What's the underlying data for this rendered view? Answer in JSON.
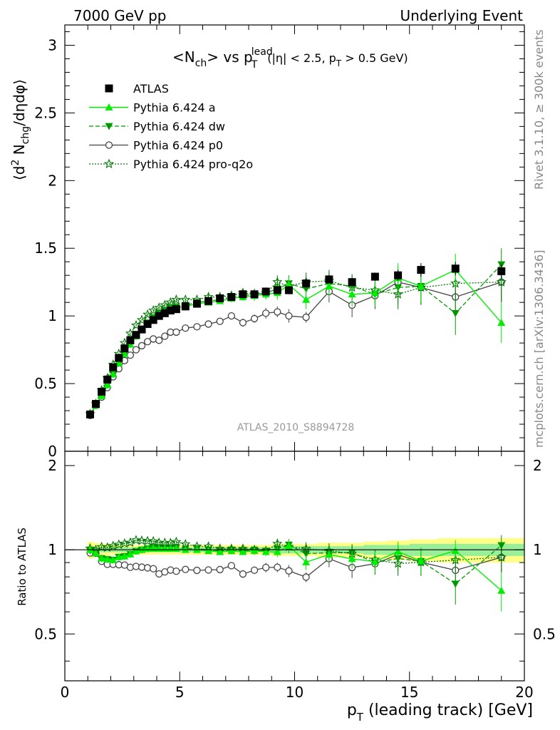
{
  "header": {
    "left": "7000 GeV pp",
    "right": "Underlying Event"
  },
  "plot_title": {
    "main": "<N",
    "main_sub": "ch",
    "vs": "> vs p",
    "vs_sup": "lead",
    "vs_sub": "T",
    "cut_open": "(|η| < 2.5, p",
    "cut_sub": "T",
    "cut_close": " > 0.5 GeV)"
  },
  "side_labels": {
    "rivet": "Rivet 3.1.10, ≥ 300k events",
    "mcplots": "mcplots.cern.ch [arXiv:1306.3436]"
  },
  "watermark": "ATLAS_2010_S8894728",
  "y_label_top": {
    "open": "⟨d",
    "sup": "2",
    "mid": " N",
    "sub": "chg",
    "close": "/dηdφ⟩"
  },
  "y_label_bottom": "Ratio to ATLAS",
  "x_label": {
    "p": "p",
    "sub": "T",
    "rest": "  (leading track) [GeV]"
  },
  "legend": [
    {
      "label": "ATLAS"
    },
    {
      "label": "Pythia 6.424 a"
    },
    {
      "label": "Pythia 6.424 dw"
    },
    {
      "label": "Pythia 6.424 p0"
    },
    {
      "label": "Pythia 6.424 pro-q2o"
    }
  ],
  "colors": {
    "data": "#000000",
    "a": "#00ee00",
    "dw": "#009900",
    "p0": "#444444",
    "pro": "#007700",
    "band_data": "#ffff88",
    "band_mc": "#99ee99"
  },
  "chart_data": {
    "type": "scatter",
    "x": [
      1.1,
      1.35,
      1.6,
      1.85,
      2.1,
      2.35,
      2.6,
      2.85,
      3.1,
      3.35,
      3.6,
      3.85,
      4.1,
      4.35,
      4.6,
      4.85,
      5.25,
      5.75,
      6.25,
      6.75,
      7.25,
      7.75,
      8.25,
      8.75,
      9.25,
      9.75,
      10.5,
      11.5,
      12.5,
      13.5,
      14.5,
      15.5,
      17.0,
      19.0
    ],
    "xlim": [
      0,
      20
    ],
    "xticks": [
      0,
      5,
      10,
      15,
      20
    ],
    "ylim_top": [
      0,
      3.15
    ],
    "yticks_top": [
      0,
      0.5,
      1,
      1.5,
      2,
      2.5,
      3
    ],
    "ylim_ratio": [
      0.34,
      2.25
    ],
    "yticks_ratio": [
      0.5,
      1,
      2
    ],
    "series": [
      {
        "name": "ATLAS",
        "key": "data",
        "values": [
          0.272,
          0.35,
          0.44,
          0.53,
          0.62,
          0.69,
          0.76,
          0.82,
          0.86,
          0.9,
          0.94,
          0.97,
          1.0,
          1.02,
          1.04,
          1.05,
          1.07,
          1.09,
          1.11,
          1.13,
          1.14,
          1.16,
          1.16,
          1.18,
          1.19,
          1.19,
          1.24,
          1.27,
          1.25,
          1.29,
          1.3,
          1.34,
          1.35,
          1.33
        ],
        "errors": [
          0.005,
          0.005,
          0.005,
          0.005,
          0.005,
          0.005,
          0.005,
          0.005,
          0.005,
          0.005,
          0.005,
          0.005,
          0.005,
          0.005,
          0.005,
          0.005,
          0.01,
          0.01,
          0.01,
          0.01,
          0.01,
          0.01,
          0.01,
          0.01,
          0.02,
          0.02,
          0.03,
          0.03,
          0.03,
          0.03,
          0.04,
          0.05,
          0.05,
          0.05
        ]
      },
      {
        "name": "Pythia 6.424 a",
        "key": "a",
        "values": [
          0.272,
          0.34,
          0.41,
          0.49,
          0.57,
          0.65,
          0.72,
          0.79,
          0.85,
          0.9,
          0.95,
          0.98,
          1.01,
          1.03,
          1.05,
          1.06,
          1.07,
          1.09,
          1.1,
          1.11,
          1.13,
          1.14,
          1.15,
          1.16,
          1.17,
          1.23,
          1.12,
          1.22,
          1.16,
          1.17,
          1.28,
          1.22,
          1.34,
          0.95
        ],
        "errors": [
          0.005,
          0.005,
          0.005,
          0.005,
          0.005,
          0.005,
          0.005,
          0.005,
          0.005,
          0.005,
          0.01,
          0.01,
          0.01,
          0.01,
          0.01,
          0.01,
          0.01,
          0.01,
          0.02,
          0.02,
          0.03,
          0.03,
          0.04,
          0.04,
          0.05,
          0.06,
          0.07,
          0.08,
          0.09,
          0.1,
          0.11,
          0.12,
          0.12,
          0.15
        ]
      },
      {
        "name": "Pythia 6.424 dw",
        "key": "dw",
        "values": [
          0.27,
          0.34,
          0.41,
          0.49,
          0.57,
          0.65,
          0.72,
          0.79,
          0.85,
          0.9,
          0.95,
          0.99,
          1.02,
          1.04,
          1.06,
          1.07,
          1.08,
          1.1,
          1.11,
          1.12,
          1.14,
          1.15,
          1.16,
          1.17,
          1.2,
          1.24,
          1.2,
          1.24,
          1.22,
          1.16,
          1.21,
          1.22,
          1.02,
          1.38
        ],
        "errors": [
          0.005,
          0.005,
          0.005,
          0.005,
          0.005,
          0.005,
          0.005,
          0.005,
          0.005,
          0.005,
          0.01,
          0.01,
          0.01,
          0.01,
          0.01,
          0.01,
          0.01,
          0.01,
          0.02,
          0.02,
          0.03,
          0.03,
          0.04,
          0.04,
          0.05,
          0.06,
          0.07,
          0.08,
          0.09,
          0.1,
          0.12,
          0.14,
          0.16,
          0.12
        ]
      },
      {
        "name": "Pythia 6.424 p0",
        "key": "p0",
        "values": [
          0.265,
          0.34,
          0.4,
          0.47,
          0.55,
          0.61,
          0.67,
          0.71,
          0.75,
          0.78,
          0.81,
          0.83,
          0.82,
          0.85,
          0.88,
          0.88,
          0.91,
          0.92,
          0.94,
          0.96,
          1.0,
          0.95,
          0.98,
          1.02,
          1.03,
          1.0,
          0.99,
          1.18,
          1.08,
          1.15,
          1.25,
          1.21,
          1.14,
          1.25
        ],
        "errors": [
          0.005,
          0.005,
          0.005,
          0.005,
          0.005,
          0.005,
          0.005,
          0.005,
          0.005,
          0.005,
          0.01,
          0.01,
          0.01,
          0.01,
          0.01,
          0.01,
          0.01,
          0.01,
          0.02,
          0.02,
          0.02,
          0.03,
          0.03,
          0.04,
          0.04,
          0.05,
          0.04,
          0.08,
          0.09,
          0.1,
          0.11,
          0.12,
          0.12,
          0.15
        ]
      },
      {
        "name": "Pythia 6.424 pro-q2o",
        "key": "pro",
        "values": [
          0.275,
          0.35,
          0.45,
          0.54,
          0.64,
          0.72,
          0.8,
          0.87,
          0.93,
          0.97,
          1.01,
          1.04,
          1.06,
          1.08,
          1.1,
          1.12,
          1.12,
          1.12,
          1.14,
          1.14,
          1.15,
          1.17,
          1.16,
          1.17,
          1.25,
          1.22,
          1.25,
          1.26,
          1.21,
          1.19,
          1.16,
          1.21,
          1.24,
          1.25
        ],
        "errors": [
          0.005,
          0.005,
          0.005,
          0.005,
          0.005,
          0.005,
          0.005,
          0.005,
          0.005,
          0.005,
          0.01,
          0.01,
          0.01,
          0.01,
          0.01,
          0.01,
          0.01,
          0.01,
          0.02,
          0.02,
          0.03,
          0.03,
          0.04,
          0.04,
          0.05,
          0.06,
          0.07,
          0.08,
          0.09,
          0.1,
          0.11,
          0.12,
          0.12,
          0.14
        ]
      }
    ],
    "ratio_band_data": [
      0.07,
      0.06,
      0.05,
      0.05,
      0.04,
      0.04,
      0.04,
      0.04,
      0.04,
      0.04,
      0.04,
      0.04,
      0.04,
      0.04,
      0.04,
      0.04,
      0.04,
      0.04,
      0.04,
      0.04,
      0.04,
      0.04,
      0.04,
      0.04,
      0.05,
      0.05,
      0.05,
      0.06,
      0.06,
      0.07,
      0.08,
      0.09,
      0.1,
      0.1
    ],
    "ratio_band_mc": [
      0.02,
      0.02,
      0.02,
      0.02,
      0.02,
      0.02,
      0.02,
      0.02,
      0.02,
      0.02,
      0.02,
      0.02,
      0.02,
      0.02,
      0.02,
      0.02,
      0.02,
      0.02,
      0.02,
      0.02,
      0.02,
      0.02,
      0.02,
      0.02,
      0.03,
      0.03,
      0.03,
      0.03,
      0.03,
      0.04,
      0.04,
      0.05,
      0.05,
      0.05
    ]
  }
}
